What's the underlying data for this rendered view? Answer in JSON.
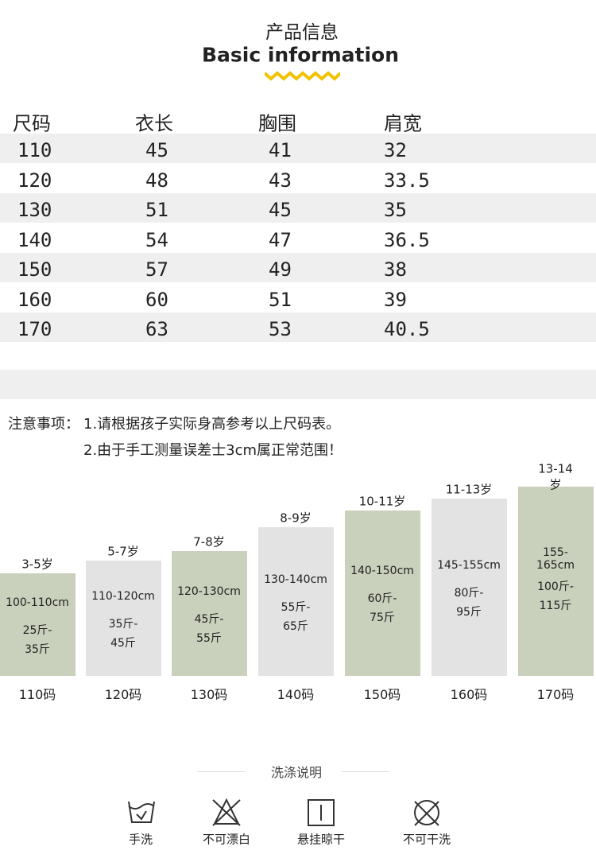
{
  "header": {
    "title": "产品信息",
    "subtitle": "Basic information"
  },
  "table": {
    "columns": [
      "尺码",
      "衣长",
      "胸围",
      "肩宽"
    ],
    "rows": [
      [
        "110",
        "45",
        "41",
        "32"
      ],
      [
        "120",
        "48",
        "43",
        "33.5"
      ],
      [
        "130",
        "51",
        "45",
        "35"
      ],
      [
        "140",
        "54",
        "47",
        "36.5"
      ],
      [
        "150",
        "57",
        "49",
        "38"
      ],
      [
        "160",
        "60",
        "51",
        "39"
      ],
      [
        "170",
        "63",
        "53",
        "40.5"
      ]
    ]
  },
  "notes": {
    "label": "注意事项：",
    "items": [
      "1.请根据孩子实际身高参考以上尺码表。",
      "2.由于手工测量误差士3cm属正常范围！"
    ]
  },
  "sizes": [
    {
      "age": "3-5岁",
      "height": "100-110cm",
      "weight": [
        "25斤-",
        "35斤"
      ],
      "size": "110码"
    },
    {
      "age": "5-7岁",
      "height": "110-120cm",
      "weight": [
        "35斤-",
        "45斤"
      ],
      "size": "120码"
    },
    {
      "age": "7-8岁",
      "height": "120-130cm",
      "weight": [
        "45斤-",
        "55斤"
      ],
      "size": "130码"
    },
    {
      "age": "8-9岁",
      "height": "130-140cm",
      "weight": [
        "55斤-",
        "65斤"
      ],
      "size": "140码"
    },
    {
      "age": "10-11岁",
      "height": "140-150cm",
      "weight": [
        "60斤-",
        "75斤"
      ],
      "size": "150码"
    },
    {
      "age": "11-13岁",
      "height": "145-155cm",
      "weight": [
        "80斤-",
        "95斤"
      ],
      "size": "160码"
    },
    {
      "age": "13-14岁",
      "height": "155-165cm",
      "weight": [
        "100斤-",
        "115斤"
      ],
      "size": "170码"
    }
  ],
  "care": {
    "title": "洗涤说明",
    "items": [
      "手洗",
      "不可漂白",
      "悬挂晾干",
      "不可干洗"
    ]
  }
}
